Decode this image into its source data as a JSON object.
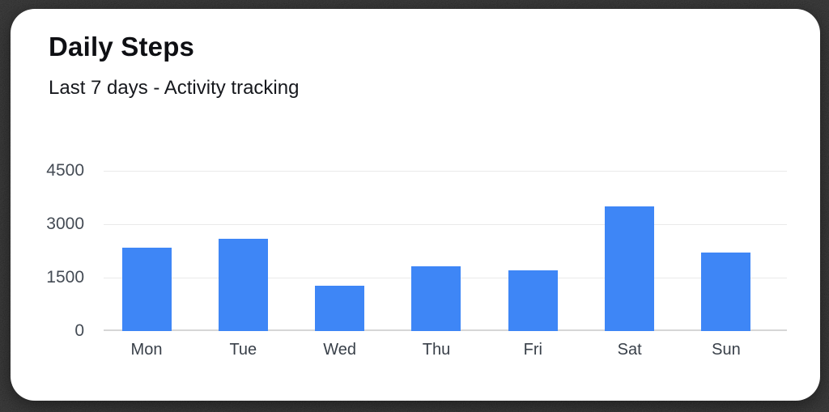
{
  "card": {
    "title": "Daily Steps",
    "subtitle": "Last 7 days - Activity tracking"
  },
  "chart_data": {
    "type": "bar",
    "title": "Daily Steps",
    "subtitle": "Last 7 days - Activity tracking",
    "categories": [
      "Mon",
      "Tue",
      "Wed",
      "Thu",
      "Fri",
      "Sat",
      "Sun"
    ],
    "values": [
      2350,
      2600,
      1280,
      1820,
      1700,
      3500,
      2200
    ],
    "xlabel": "",
    "ylabel": "",
    "ylim": [
      0,
      4500
    ],
    "yticks": [
      0,
      1500,
      3000,
      4500
    ],
    "grid": true,
    "legend": false,
    "bar_color": "#3E86F6"
  },
  "colors": {
    "bar": "#3E86F6",
    "gridline": "#eaeaea",
    "axis_line": "#d6d6d6",
    "title_text": "#0e0f13",
    "subtitle_text": "#16181d",
    "tick_text": "#444b54",
    "card_background": "#ffffff",
    "page_background": "#0a0a0a"
  }
}
